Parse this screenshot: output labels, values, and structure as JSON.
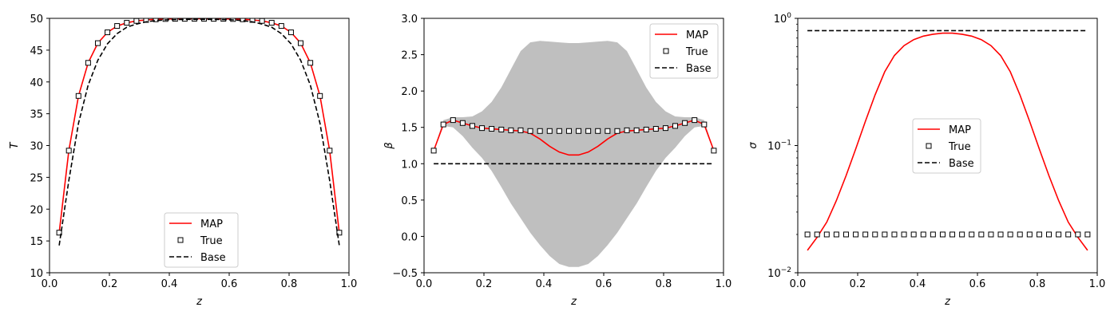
{
  "colors": {
    "map": "#ff0000",
    "true": "#000000",
    "base": "#000000",
    "band": "#bfbfbf"
  },
  "chart_data": [
    {
      "type": "line",
      "xlabel": "z",
      "ylabel": "T",
      "xlim": [
        0,
        1
      ],
      "ylim": [
        10,
        50
      ],
      "xticks": [
        0,
        0.2,
        0.4,
        0.6,
        0.8,
        1.0
      ],
      "xtick_labels": [
        "0.0",
        "0.2",
        "0.4",
        "0.6",
        "0.8",
        "1.0"
      ],
      "yticks": [
        10,
        15,
        20,
        25,
        30,
        35,
        40,
        45,
        50
      ],
      "ytick_labels": [
        "10",
        "15",
        "20",
        "25",
        "30",
        "35",
        "40",
        "45",
        "50"
      ],
      "legend_position": "lower center",
      "series": [
        {
          "name": "MAP",
          "style": "red-solid",
          "x": [
            0.0323,
            0.0645,
            0.0968,
            0.129,
            0.1613,
            0.1935,
            0.2258,
            0.2581,
            0.2903,
            0.3226,
            0.3548,
            0.3871,
            0.4194,
            0.4516,
            0.4839,
            0.5161,
            0.5484,
            0.5806,
            0.6129,
            0.6452,
            0.6774,
            0.7097,
            0.7419,
            0.7742,
            0.8065,
            0.8387,
            0.871,
            0.9032,
            0.9355,
            0.9677
          ],
          "y": [
            16.3,
            29.2,
            37.8,
            43.0,
            46.1,
            47.8,
            48.8,
            49.3,
            49.6,
            49.75,
            49.85,
            49.9,
            49.92,
            49.93,
            49.94,
            49.94,
            49.93,
            49.92,
            49.9,
            49.85,
            49.75,
            49.6,
            49.3,
            48.8,
            47.8,
            46.1,
            43.0,
            37.8,
            29.2,
            16.3
          ]
        },
        {
          "name": "True",
          "style": "black-square",
          "x": [
            0.0323,
            0.0645,
            0.0968,
            0.129,
            0.1613,
            0.1935,
            0.2258,
            0.2581,
            0.2903,
            0.3226,
            0.3548,
            0.3871,
            0.4194,
            0.4516,
            0.4839,
            0.5161,
            0.5484,
            0.5806,
            0.6129,
            0.6452,
            0.6774,
            0.7097,
            0.7419,
            0.7742,
            0.8065,
            0.8387,
            0.871,
            0.9032,
            0.9355,
            0.9677
          ],
          "y": [
            16.3,
            29.2,
            37.8,
            43.0,
            46.1,
            47.8,
            48.8,
            49.3,
            49.6,
            49.75,
            49.85,
            49.9,
            49.92,
            49.93,
            49.94,
            49.94,
            49.93,
            49.92,
            49.9,
            49.85,
            49.75,
            49.6,
            49.3,
            48.8,
            47.8,
            46.1,
            43.0,
            37.8,
            29.2,
            16.3
          ]
        },
        {
          "name": " Base",
          "style": "black-dashed",
          "x": [
            0.0323,
            0.0645,
            0.0968,
            0.129,
            0.1613,
            0.1935,
            0.2258,
            0.2581,
            0.2903,
            0.3226,
            0.3548,
            0.3871,
            0.4194,
            0.4516,
            0.4839,
            0.5161,
            0.5484,
            0.5806,
            0.6129,
            0.6452,
            0.6774,
            0.7097,
            0.7419,
            0.7742,
            0.8065,
            0.8387,
            0.871,
            0.9032,
            0.9355,
            0.9677
          ],
          "y": [
            14.3,
            24.5,
            33.5,
            39.5,
            43.4,
            46.0,
            47.6,
            48.6,
            49.1,
            49.45,
            49.65,
            49.75,
            49.8,
            49.83,
            49.84,
            49.84,
            49.83,
            49.8,
            49.75,
            49.65,
            49.45,
            49.1,
            48.6,
            47.6,
            46.0,
            43.4,
            39.5,
            33.5,
            24.5,
            14.3
          ]
        }
      ]
    },
    {
      "type": "line",
      "xlabel": "z",
      "ylabel": "β",
      "xlim": [
        0,
        1
      ],
      "ylim": [
        -0.5,
        3.0
      ],
      "xticks": [
        0,
        0.2,
        0.4,
        0.6,
        0.8,
        1.0
      ],
      "xtick_labels": [
        "0.0",
        "0.2",
        "0.4",
        "0.6",
        "0.8",
        "1.0"
      ],
      "yticks": [
        -0.5,
        0.0,
        0.5,
        1.0,
        1.5,
        2.0,
        2.5,
        3.0
      ],
      "ytick_labels": [
        "−0.5",
        "0.0",
        "0.5",
        "1.0",
        "1.5",
        "2.0",
        "2.5",
        "3.0"
      ],
      "legend_position": "upper right",
      "band": {
        "x": [
          0.0323,
          0.0645,
          0.0968,
          0.129,
          0.1613,
          0.1935,
          0.2258,
          0.2581,
          0.2903,
          0.3226,
          0.3548,
          0.3871,
          0.4194,
          0.4516,
          0.4839,
          0.5161,
          0.5484,
          0.5806,
          0.6129,
          0.6452,
          0.6774,
          0.7097,
          0.7419,
          0.7742,
          0.8065,
          0.8387,
          0.871,
          0.9032,
          0.9355,
          0.9677
        ],
        "upper": [
          1.18,
          1.6,
          1.64,
          1.64,
          1.65,
          1.72,
          1.85,
          2.05,
          2.3,
          2.55,
          2.67,
          2.69,
          2.68,
          2.67,
          2.66,
          2.66,
          2.67,
          2.68,
          2.69,
          2.67,
          2.55,
          2.3,
          2.05,
          1.85,
          1.72,
          1.65,
          1.64,
          1.64,
          1.6,
          1.18
        ],
        "lower": [
          1.18,
          1.52,
          1.5,
          1.38,
          1.22,
          1.08,
          0.9,
          0.68,
          0.45,
          0.25,
          0.05,
          -0.12,
          -0.27,
          -0.38,
          -0.42,
          -0.42,
          -0.38,
          -0.27,
          -0.12,
          0.05,
          0.25,
          0.45,
          0.68,
          0.9,
          1.08,
          1.22,
          1.38,
          1.5,
          1.52,
          1.18
        ]
      },
      "series": [
        {
          "name": "MAP",
          "style": "red-solid",
          "x": [
            0.0323,
            0.0645,
            0.0968,
            0.129,
            0.1613,
            0.1935,
            0.2258,
            0.2581,
            0.2903,
            0.3226,
            0.3548,
            0.3871,
            0.4194,
            0.4516,
            0.4839,
            0.5161,
            0.5484,
            0.5806,
            0.6129,
            0.6452,
            0.6774,
            0.7097,
            0.7419,
            0.7742,
            0.8065,
            0.8387,
            0.871,
            0.9032,
            0.9355,
            0.9677
          ],
          "y": [
            1.18,
            1.54,
            1.6,
            1.56,
            1.52,
            1.49,
            1.48,
            1.47,
            1.46,
            1.45,
            1.42,
            1.34,
            1.24,
            1.16,
            1.12,
            1.12,
            1.16,
            1.24,
            1.34,
            1.42,
            1.45,
            1.46,
            1.47,
            1.48,
            1.49,
            1.52,
            1.56,
            1.6,
            1.54,
            1.18
          ]
        },
        {
          "name": "True",
          "style": "black-square",
          "x": [
            0.0323,
            0.0645,
            0.0968,
            0.129,
            0.1613,
            0.1935,
            0.2258,
            0.2581,
            0.2903,
            0.3226,
            0.3548,
            0.3871,
            0.4194,
            0.4516,
            0.4839,
            0.5161,
            0.5484,
            0.5806,
            0.6129,
            0.6452,
            0.6774,
            0.7097,
            0.7419,
            0.7742,
            0.8065,
            0.8387,
            0.871,
            0.9032,
            0.9355,
            0.9677
          ],
          "y": [
            1.18,
            1.54,
            1.6,
            1.56,
            1.52,
            1.49,
            1.48,
            1.47,
            1.46,
            1.46,
            1.45,
            1.45,
            1.45,
            1.45,
            1.45,
            1.45,
            1.45,
            1.45,
            1.45,
            1.45,
            1.46,
            1.46,
            1.47,
            1.48,
            1.49,
            1.52,
            1.56,
            1.6,
            1.54,
            1.18
          ]
        },
        {
          "name": "Base",
          "style": "black-dashed",
          "x": [
            0.0323,
            0.9677
          ],
          "y": [
            1.0,
            1.0
          ]
        }
      ]
    },
    {
      "type": "line",
      "xlabel": "z",
      "ylabel": "σ",
      "xlim": [
        0,
        1
      ],
      "ylim": [
        0.01,
        1
      ],
      "yscale": "log",
      "xticks": [
        0,
        0.2,
        0.4,
        0.6,
        0.8,
        1.0
      ],
      "xtick_labels": [
        "0.0",
        "0.2",
        "0.4",
        "0.6",
        "0.8",
        "1.0"
      ],
      "yticks": [
        0.01,
        0.1,
        1
      ],
      "ytick_labels": [
        "10",
        "10",
        "10"
      ],
      "ytick_exponents": [
        "−2",
        "−1",
        "0"
      ],
      "legend_position": "center",
      "series": [
        {
          "name": "MAP",
          "style": "red-solid",
          "x": [
            0.0323,
            0.0645,
            0.0968,
            0.129,
            0.1613,
            0.1935,
            0.2258,
            0.2581,
            0.2903,
            0.3226,
            0.3548,
            0.3871,
            0.4194,
            0.4516,
            0.4839,
            0.5161,
            0.5484,
            0.5806,
            0.6129,
            0.6452,
            0.6774,
            0.7097,
            0.7419,
            0.7742,
            0.8065,
            0.8387,
            0.871,
            0.9032,
            0.9355,
            0.9677
          ],
          "y": [
            0.015,
            0.019,
            0.025,
            0.037,
            0.058,
            0.094,
            0.155,
            0.25,
            0.38,
            0.51,
            0.61,
            0.68,
            0.725,
            0.75,
            0.765,
            0.765,
            0.75,
            0.725,
            0.68,
            0.61,
            0.51,
            0.38,
            0.25,
            0.155,
            0.094,
            0.058,
            0.037,
            0.025,
            0.019,
            0.015
          ]
        },
        {
          "name": "True",
          "style": "black-square",
          "x": [
            0.0323,
            0.0645,
            0.0968,
            0.129,
            0.1613,
            0.1935,
            0.2258,
            0.2581,
            0.2903,
            0.3226,
            0.3548,
            0.3871,
            0.4194,
            0.4516,
            0.4839,
            0.5161,
            0.5484,
            0.5806,
            0.6129,
            0.6452,
            0.6774,
            0.7097,
            0.7419,
            0.7742,
            0.8065,
            0.8387,
            0.871,
            0.9032,
            0.9355,
            0.9677
          ],
          "y": [
            0.02,
            0.02,
            0.02,
            0.02,
            0.02,
            0.02,
            0.02,
            0.02,
            0.02,
            0.02,
            0.02,
            0.02,
            0.02,
            0.02,
            0.02,
            0.02,
            0.02,
            0.02,
            0.02,
            0.02,
            0.02,
            0.02,
            0.02,
            0.02,
            0.02,
            0.02,
            0.02,
            0.02,
            0.02,
            0.02
          ]
        },
        {
          "name": "Base",
          "style": "black-dashed",
          "x": [
            0.0323,
            0.9677
          ],
          "y": [
            0.8,
            0.8
          ]
        }
      ]
    }
  ]
}
